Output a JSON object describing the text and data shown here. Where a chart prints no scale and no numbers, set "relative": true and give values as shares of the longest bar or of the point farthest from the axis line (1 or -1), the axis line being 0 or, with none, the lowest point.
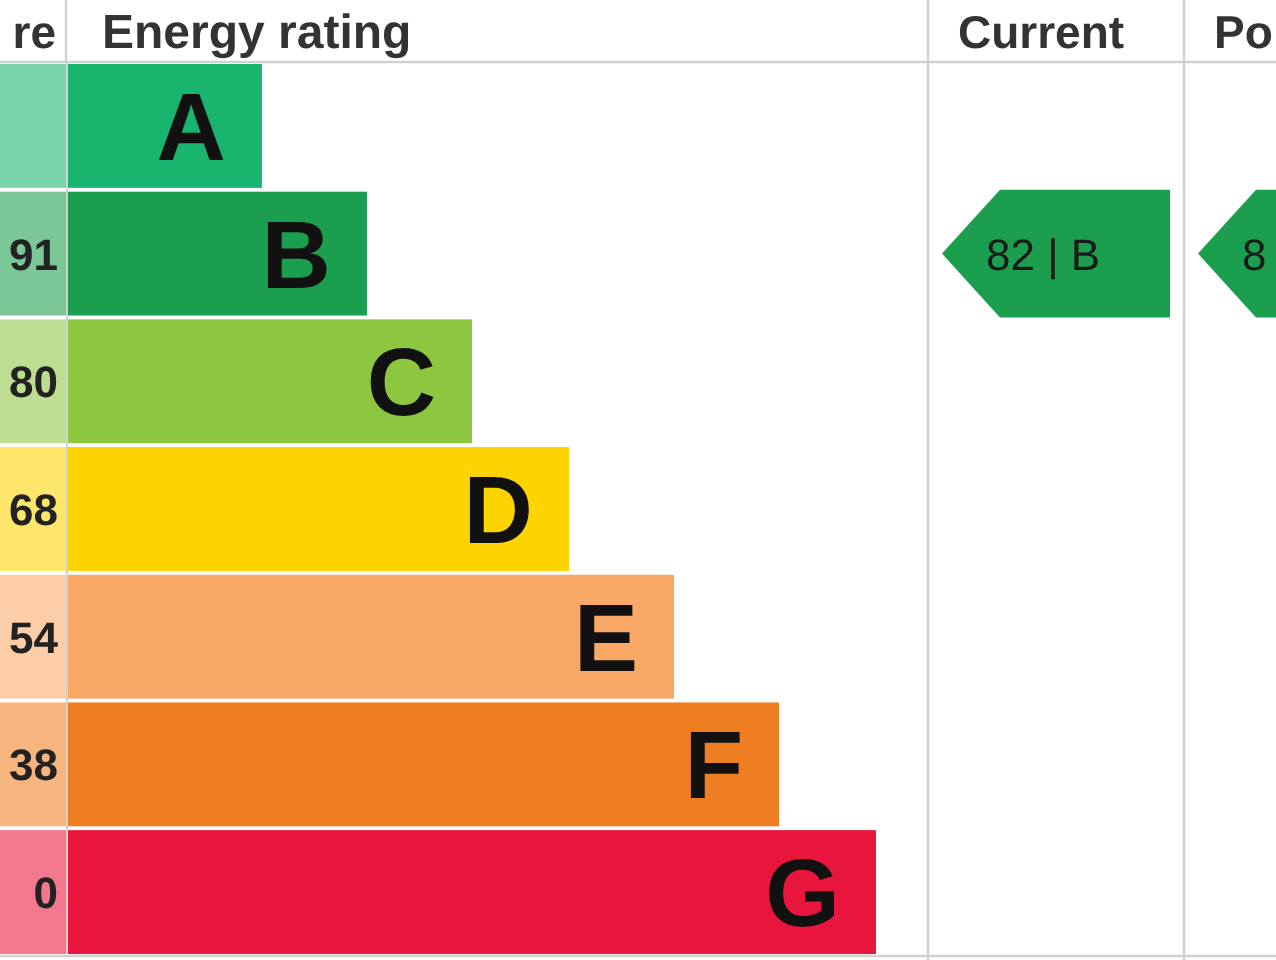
{
  "chart_data": {
    "type": "bar",
    "orientation": "horizontal",
    "relative": true,
    "title": "Energy rating",
    "ylabel": "re",
    "categories": [
      "A",
      "B",
      "C",
      "D",
      "E",
      "F",
      "G"
    ],
    "values": [
      0.24,
      0.37,
      0.5,
      0.62,
      0.75,
      0.88,
      1
    ],
    "colors": [
      "#19b46e",
      "#1b9f4e",
      "#8dc63f",
      "#fdd400",
      "#f9a865",
      "#ef7d22",
      "#e8163d"
    ],
    "annotations": [
      "Current",
      "Po",
      "82 | B",
      "8",
      "91",
      "80",
      "68",
      "54",
      "38",
      "0"
    ]
  }
}
